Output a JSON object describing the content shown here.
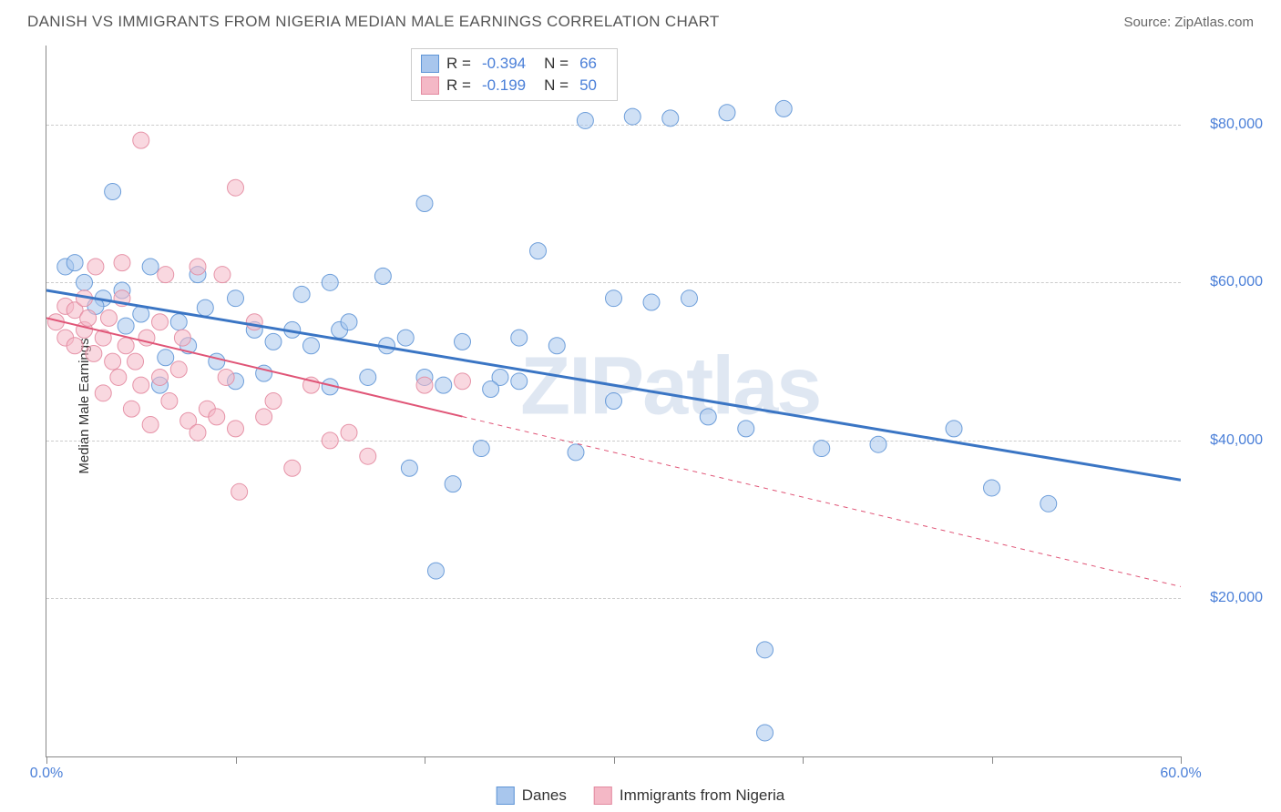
{
  "header": {
    "title": "DANISH VS IMMIGRANTS FROM NIGERIA MEDIAN MALE EARNINGS CORRELATION CHART",
    "source": "Source: ZipAtlas.com"
  },
  "chart": {
    "type": "scatter",
    "ylabel": "Median Male Earnings",
    "xlim": [
      0,
      60
    ],
    "ylim": [
      0,
      90000
    ],
    "x_ticks": [
      0,
      10,
      20,
      30,
      40,
      50,
      60
    ],
    "x_tick_labels_shown": {
      "0": "0.0%",
      "60": "60.0%"
    },
    "y_gridlines": [
      20000,
      40000,
      60000,
      80000
    ],
    "y_tick_labels": [
      "$20,000",
      "$40,000",
      "$60,000",
      "$80,000"
    ],
    "background_color": "#ffffff",
    "grid_color": "#cccccc",
    "axis_color": "#888888",
    "tick_label_color": "#4a7fd8",
    "marker_radius": 9,
    "marker_opacity": 0.55,
    "marker_stroke_opacity": 0.9,
    "watermark_text": "ZIPatlas",
    "series": [
      {
        "name": "Danes",
        "color_fill": "#a8c6ed",
        "color_stroke": "#5f95d6",
        "R": "-0.394",
        "N": "66",
        "trend": {
          "x1": 0,
          "y1": 59000,
          "x2": 60,
          "y2": 35000,
          "color": "#3a75c4",
          "width": 3,
          "solid_until_x": 60
        },
        "points": [
          [
            1,
            62000
          ],
          [
            1.5,
            62500
          ],
          [
            2,
            60000
          ],
          [
            3,
            58000
          ],
          [
            3.5,
            71500
          ],
          [
            4,
            59000
          ],
          [
            5,
            56000
          ],
          [
            5.5,
            62000
          ],
          [
            6,
            47000
          ],
          [
            7,
            55000
          ],
          [
            7.5,
            52000
          ],
          [
            8,
            61000
          ],
          [
            9,
            50000
          ],
          [
            10,
            58000
          ],
          [
            10,
            47500
          ],
          [
            11,
            54000
          ],
          [
            12,
            52500
          ],
          [
            13,
            54000
          ],
          [
            14,
            52000
          ],
          [
            15,
            60000
          ],
          [
            15.5,
            54000
          ],
          [
            16,
            55000
          ],
          [
            17,
            48000
          ],
          [
            17.8,
            60800
          ],
          [
            18,
            52000
          ],
          [
            19,
            53000
          ],
          [
            20,
            70000
          ],
          [
            20,
            48000
          ],
          [
            20.6,
            23500
          ],
          [
            21,
            47000
          ],
          [
            21.5,
            34500
          ],
          [
            22,
            52500
          ],
          [
            23,
            39000
          ],
          [
            24,
            48000
          ],
          [
            25,
            47500
          ],
          [
            25,
            53000
          ],
          [
            26,
            64000
          ],
          [
            27,
            52000
          ],
          [
            28,
            38500
          ],
          [
            30,
            45000
          ],
          [
            30,
            58000
          ],
          [
            31,
            81000
          ],
          [
            32,
            57500
          ],
          [
            34,
            58000
          ],
          [
            35,
            43000
          ],
          [
            36,
            81500
          ],
          [
            37,
            41500
          ],
          [
            38,
            13500
          ],
          [
            38,
            3000
          ],
          [
            39,
            82000
          ],
          [
            41,
            39000
          ],
          [
            44,
            39500
          ],
          [
            48,
            41500
          ],
          [
            50,
            34000
          ],
          [
            53,
            32000
          ],
          [
            28.5,
            80500
          ],
          [
            11.5,
            48500
          ],
          [
            6.3,
            50500
          ],
          [
            4.2,
            54500
          ],
          [
            2.6,
            57000
          ],
          [
            8.4,
            56800
          ],
          [
            13.5,
            58500
          ],
          [
            19.2,
            36500
          ],
          [
            33,
            80800
          ],
          [
            15,
            46800
          ],
          [
            23.5,
            46500
          ]
        ]
      },
      {
        "name": "Immigrants from Nigeria",
        "color_fill": "#f4b8c6",
        "color_stroke": "#e38aa0",
        "R": "-0.199",
        "N": "50",
        "trend": {
          "x1": 0,
          "y1": 55500,
          "x2": 60,
          "y2": 21500,
          "color": "#e05577",
          "width": 2,
          "solid_until_x": 22
        },
        "points": [
          [
            0.5,
            55000
          ],
          [
            1,
            57000
          ],
          [
            1,
            53000
          ],
          [
            1.5,
            56500
          ],
          [
            1.5,
            52000
          ],
          [
            2,
            54000
          ],
          [
            2,
            58000
          ],
          [
            2.2,
            55500
          ],
          [
            2.5,
            51000
          ],
          [
            2.6,
            62000
          ],
          [
            3,
            46000
          ],
          [
            3,
            53000
          ],
          [
            3.3,
            55500
          ],
          [
            3.5,
            50000
          ],
          [
            3.8,
            48000
          ],
          [
            4,
            62500
          ],
          [
            4,
            58000
          ],
          [
            4.2,
            52000
          ],
          [
            4.5,
            44000
          ],
          [
            4.7,
            50000
          ],
          [
            5,
            47000
          ],
          [
            5,
            78000
          ],
          [
            5.3,
            53000
          ],
          [
            5.5,
            42000
          ],
          [
            6,
            48000
          ],
          [
            6,
            55000
          ],
          [
            6.3,
            61000
          ],
          [
            6.5,
            45000
          ],
          [
            7,
            49000
          ],
          [
            7.2,
            53000
          ],
          [
            7.5,
            42500
          ],
          [
            8,
            62000
          ],
          [
            8,
            41000
          ],
          [
            8.5,
            44000
          ],
          [
            9,
            43000
          ],
          [
            9.3,
            61000
          ],
          [
            9.5,
            48000
          ],
          [
            10,
            72000
          ],
          [
            10,
            41500
          ],
          [
            10.2,
            33500
          ],
          [
            11,
            55000
          ],
          [
            11.5,
            43000
          ],
          [
            12,
            45000
          ],
          [
            13,
            36500
          ],
          [
            14,
            47000
          ],
          [
            15,
            40000
          ],
          [
            16,
            41000
          ],
          [
            17,
            38000
          ],
          [
            20,
            47000
          ],
          [
            22,
            47500
          ]
        ]
      }
    ],
    "legend_bottom": [
      {
        "label": "Danes",
        "fill": "#a8c6ed",
        "stroke": "#5f95d6"
      },
      {
        "label": "Immigrants from Nigeria",
        "fill": "#f4b8c6",
        "stroke": "#e38aa0"
      }
    ]
  }
}
